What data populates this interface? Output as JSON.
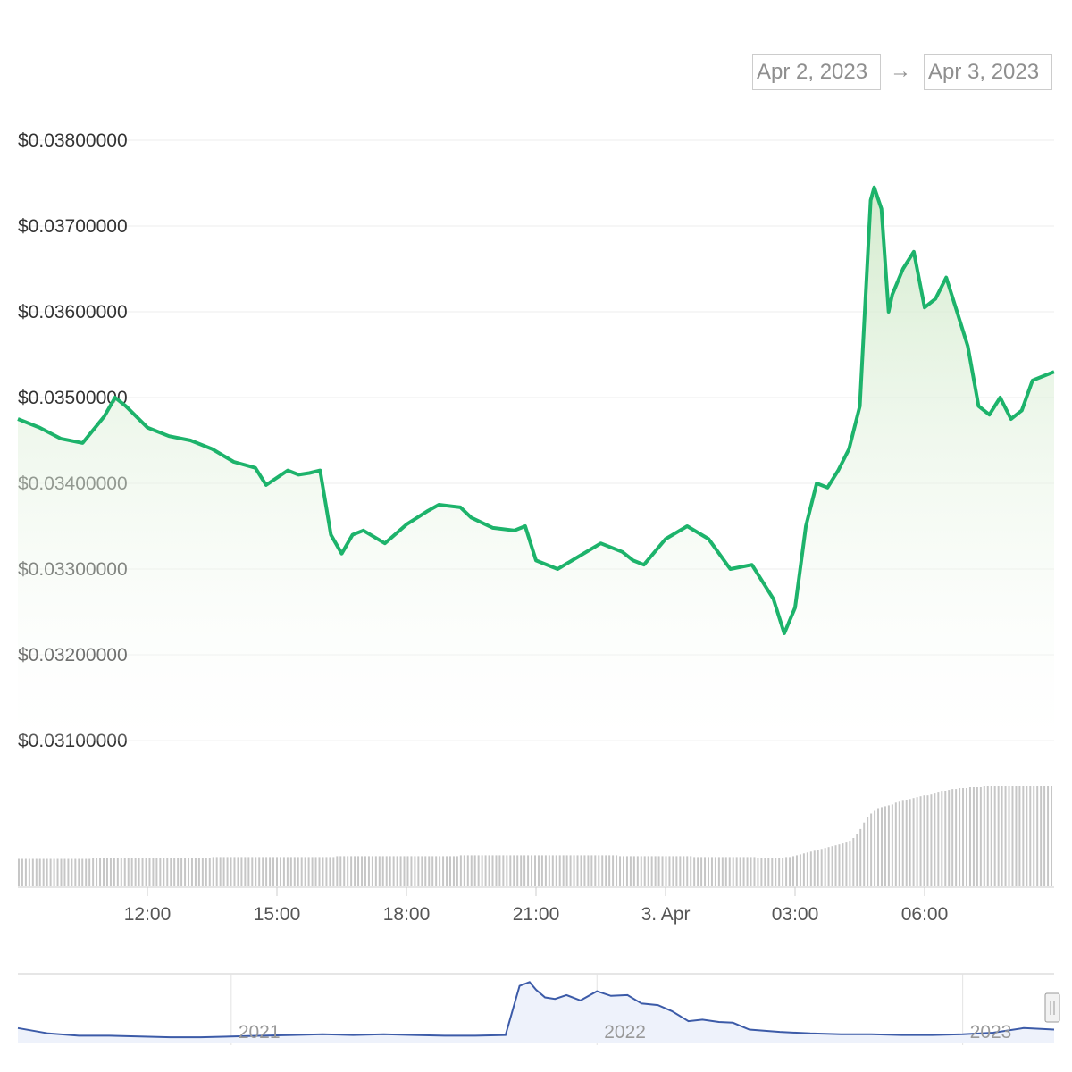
{
  "range_selector": {
    "from": "Apr 2, 2023",
    "arrow": "→",
    "to": "Apr 3, 2023"
  },
  "colors": {
    "price_line": "#1db36b",
    "price_fill_top": "#cfe9c8",
    "volume_bar": "#c6c6c6",
    "navigator_line": "#3c5ba8",
    "navigator_fill": "#eef2fb",
    "grid": "#ececec"
  },
  "chart_data": [
    {
      "type": "area",
      "title": "",
      "xlabel": "",
      "ylabel": "",
      "x_ticks": [
        "12:00",
        "15:00",
        "18:00",
        "21:00",
        "3. Apr",
        "03:00",
        "06:00"
      ],
      "y_ticks": [
        "$0.03100000",
        "$0.03200000",
        "$0.03300000",
        "$0.03400000",
        "$0.03500000",
        "$0.03600000",
        "$0.03700000",
        "$0.03800000"
      ],
      "ylim": [
        0.031,
        0.038
      ],
      "x_range_hours": [
        "Apr 2 09:00",
        "Apr 3 09:00"
      ],
      "grid": "horizontal",
      "legend": "none",
      "series": [
        {
          "x": [
            "2023-04-02 09:00",
            "2023-04-02 09:30",
            "2023-04-02 10:00",
            "2023-04-02 10:30",
            "2023-04-02 11:00",
            "2023-04-02 11:15",
            "2023-04-02 11:30",
            "2023-04-02 12:00",
            "2023-04-02 12:30",
            "2023-04-02 13:00",
            "2023-04-02 13:30",
            "2023-04-02 14:00",
            "2023-04-02 14:30",
            "2023-04-02 14:45",
            "2023-04-02 15:15",
            "2023-04-02 15:30",
            "2023-04-02 15:45",
            "2023-04-02 16:00",
            "2023-04-02 16:15",
            "2023-04-02 16:30",
            "2023-04-02 16:45",
            "2023-04-02 17:00",
            "2023-04-02 17:30",
            "2023-04-02 18:00",
            "2023-04-02 18:30",
            "2023-04-02 18:45",
            "2023-04-02 19:15",
            "2023-04-02 19:30",
            "2023-04-02 20:00",
            "2023-04-02 20:30",
            "2023-04-02 20:45",
            "2023-04-02 21:00",
            "2023-04-02 21:30",
            "2023-04-02 22:00",
            "2023-04-02 22:30",
            "2023-04-02 23:00",
            "2023-04-02 23:15",
            "2023-04-02 23:30",
            "2023-04-03 00:00",
            "2023-04-03 00:30",
            "2023-04-03 01:00",
            "2023-04-03 01:30",
            "2023-04-03 02:00",
            "2023-04-03 02:30",
            "2023-04-03 02:45",
            "2023-04-03 03:00",
            "2023-04-03 03:15",
            "2023-04-03 03:30",
            "2023-04-03 03:45",
            "2023-04-03 04:00",
            "2023-04-03 04:15",
            "2023-04-03 04:30",
            "2023-04-03 04:45",
            "2023-04-03 04:50",
            "2023-04-03 05:00",
            "2023-04-03 05:10",
            "2023-04-03 05:15",
            "2023-04-03 05:30",
            "2023-04-03 05:45",
            "2023-04-03 06:00",
            "2023-04-03 06:15",
            "2023-04-03 06:30",
            "2023-04-03 06:45",
            "2023-04-03 07:00",
            "2023-04-03 07:15",
            "2023-04-03 07:30",
            "2023-04-03 07:45",
            "2023-04-03 08:00",
            "2023-04-03 08:15",
            "2023-04-03 08:30",
            "2023-04-03 08:45",
            "2023-04-03 09:00"
          ],
          "values": [
            0.03475,
            0.03465,
            0.03452,
            0.03447,
            0.03478,
            0.035,
            0.0349,
            0.03465,
            0.03455,
            0.0345,
            0.0344,
            0.03425,
            0.03418,
            0.03398,
            0.03415,
            0.0341,
            0.03412,
            0.03415,
            0.0334,
            0.03318,
            0.0334,
            0.03345,
            0.0333,
            0.03352,
            0.03368,
            0.03375,
            0.03372,
            0.0336,
            0.03348,
            0.03345,
            0.0335,
            0.0331,
            0.033,
            0.03315,
            0.0333,
            0.0332,
            0.0331,
            0.03305,
            0.03335,
            0.0335,
            0.03335,
            0.033,
            0.03305,
            0.03265,
            0.03225,
            0.03255,
            0.0335,
            0.034,
            0.03395,
            0.03415,
            0.0344,
            0.0349,
            0.0373,
            0.03745,
            0.0372,
            0.036,
            0.0362,
            0.0365,
            0.0367,
            0.03605,
            0.03615,
            0.0364,
            0.036,
            0.0356,
            0.0349,
            0.0348,
            0.035,
            0.03475,
            0.03485,
            0.0352,
            0.03525,
            0.0353
          ]
        }
      ]
    },
    {
      "type": "bar",
      "title": "",
      "series": [
        {
          "x_range": [
            "Apr 2 09:00",
            "Apr 3 09:00"
          ],
          "values": [
            30,
            30,
            30,
            30,
            30,
            30,
            30,
            30,
            30,
            30,
            30,
            30,
            30,
            30,
            30,
            30,
            30,
            30,
            30,
            30,
            30,
            31,
            31,
            31,
            31,
            31,
            31,
            31,
            31,
            31,
            31,
            31,
            31,
            31,
            31,
            31,
            31,
            31,
            31,
            31,
            31,
            31,
            31,
            31,
            31,
            31,
            31,
            31,
            31,
            31,
            31,
            31,
            31,
            31,
            31,
            32,
            32,
            32,
            32,
            32,
            32,
            32,
            32,
            32,
            32,
            32,
            32,
            32,
            32,
            32,
            32,
            32,
            32,
            32,
            32,
            32,
            32,
            32,
            32,
            32,
            32,
            32,
            32,
            32,
            32,
            32,
            32,
            32,
            32,
            32,
            33,
            33,
            33,
            33,
            33,
            33,
            33,
            33,
            33,
            33,
            33,
            33,
            33,
            33,
            33,
            33,
            33,
            33,
            33,
            33,
            33,
            33,
            33,
            33,
            33,
            33,
            33,
            33,
            33,
            33,
            33,
            33,
            33,
            33,
            33,
            34,
            34,
            34,
            34,
            34,
            34,
            34,
            34,
            34,
            34,
            34,
            34,
            34,
            34,
            34,
            34,
            34,
            34,
            34,
            34,
            34,
            34,
            34,
            34,
            34,
            34,
            34,
            34,
            34,
            34,
            34,
            34,
            34,
            34,
            34,
            34,
            34,
            34,
            34,
            34,
            34,
            34,
            34,
            34,
            34,
            33,
            33,
            33,
            33,
            33,
            33,
            33,
            33,
            33,
            33,
            33,
            33,
            33,
            33,
            33,
            33,
            33,
            33,
            33,
            33,
            33,
            32,
            32,
            32,
            32,
            32,
            32,
            32,
            32,
            32,
            32,
            32,
            32,
            32,
            32,
            32,
            32,
            32,
            32,
            31,
            31,
            31,
            31,
            31,
            31,
            31,
            31,
            32,
            32,
            33,
            34,
            35,
            36,
            37,
            38,
            39,
            40,
            41,
            42,
            43,
            44,
            45,
            46,
            47,
            48,
            50,
            53,
            57,
            63,
            70,
            76,
            80,
            83,
            85,
            87,
            88,
            89,
            90,
            92,
            93,
            94,
            95,
            96,
            97,
            98,
            99,
            100,
            100,
            101,
            102,
            103,
            104,
            105,
            106,
            107,
            107,
            108,
            108,
            108,
            109,
            109,
            109,
            109,
            110,
            110,
            110,
            110,
            110,
            110,
            110,
            110,
            110,
            110,
            110,
            110,
            110,
            110,
            110,
            110,
            110,
            110,
            110,
            110
          ]
        }
      ]
    },
    {
      "type": "line",
      "title": "",
      "x_ticks": [
        "2021",
        "2022",
        "2023"
      ],
      "series": [
        {
          "x": [
            "2020-06",
            "2020-07",
            "2020-08",
            "2020-09",
            "2020-10",
            "2020-11",
            "2020-12",
            "2021-01",
            "2021-02",
            "2021-03",
            "2021-04",
            "2021-05",
            "2021-06",
            "2021-07",
            "2021-08",
            "2021-09",
            "2021-10",
            "2021-10-15",
            "2021-10-25",
            "2021-11",
            "2021-11-10",
            "2021-11-20",
            "2021-12",
            "2021-12-15",
            "2022-01",
            "2022-01-15",
            "2022-02",
            "2022-02-15",
            "2022-03",
            "2022-03-15",
            "2022-04",
            "2022-04-15",
            "2022-05",
            "2022-05-15",
            "2022-06",
            "2022-07",
            "2022-08",
            "2022-09",
            "2022-10",
            "2022-11",
            "2022-12",
            "2023-01",
            "2023-02",
            "2023-03",
            "2023-04"
          ],
          "values": [
            0.04,
            0.033,
            0.03,
            0.03,
            0.029,
            0.028,
            0.028,
            0.029,
            0.03,
            0.031,
            0.032,
            0.031,
            0.032,
            0.031,
            0.03,
            0.03,
            0.031,
            0.095,
            0.1,
            0.09,
            0.08,
            0.078,
            0.083,
            0.076,
            0.088,
            0.082,
            0.083,
            0.072,
            0.07,
            0.062,
            0.049,
            0.051,
            0.048,
            0.047,
            0.038,
            0.035,
            0.033,
            0.032,
            0.032,
            0.031,
            0.031,
            0.032,
            0.034,
            0.04,
            0.038
          ]
        }
      ]
    }
  ]
}
